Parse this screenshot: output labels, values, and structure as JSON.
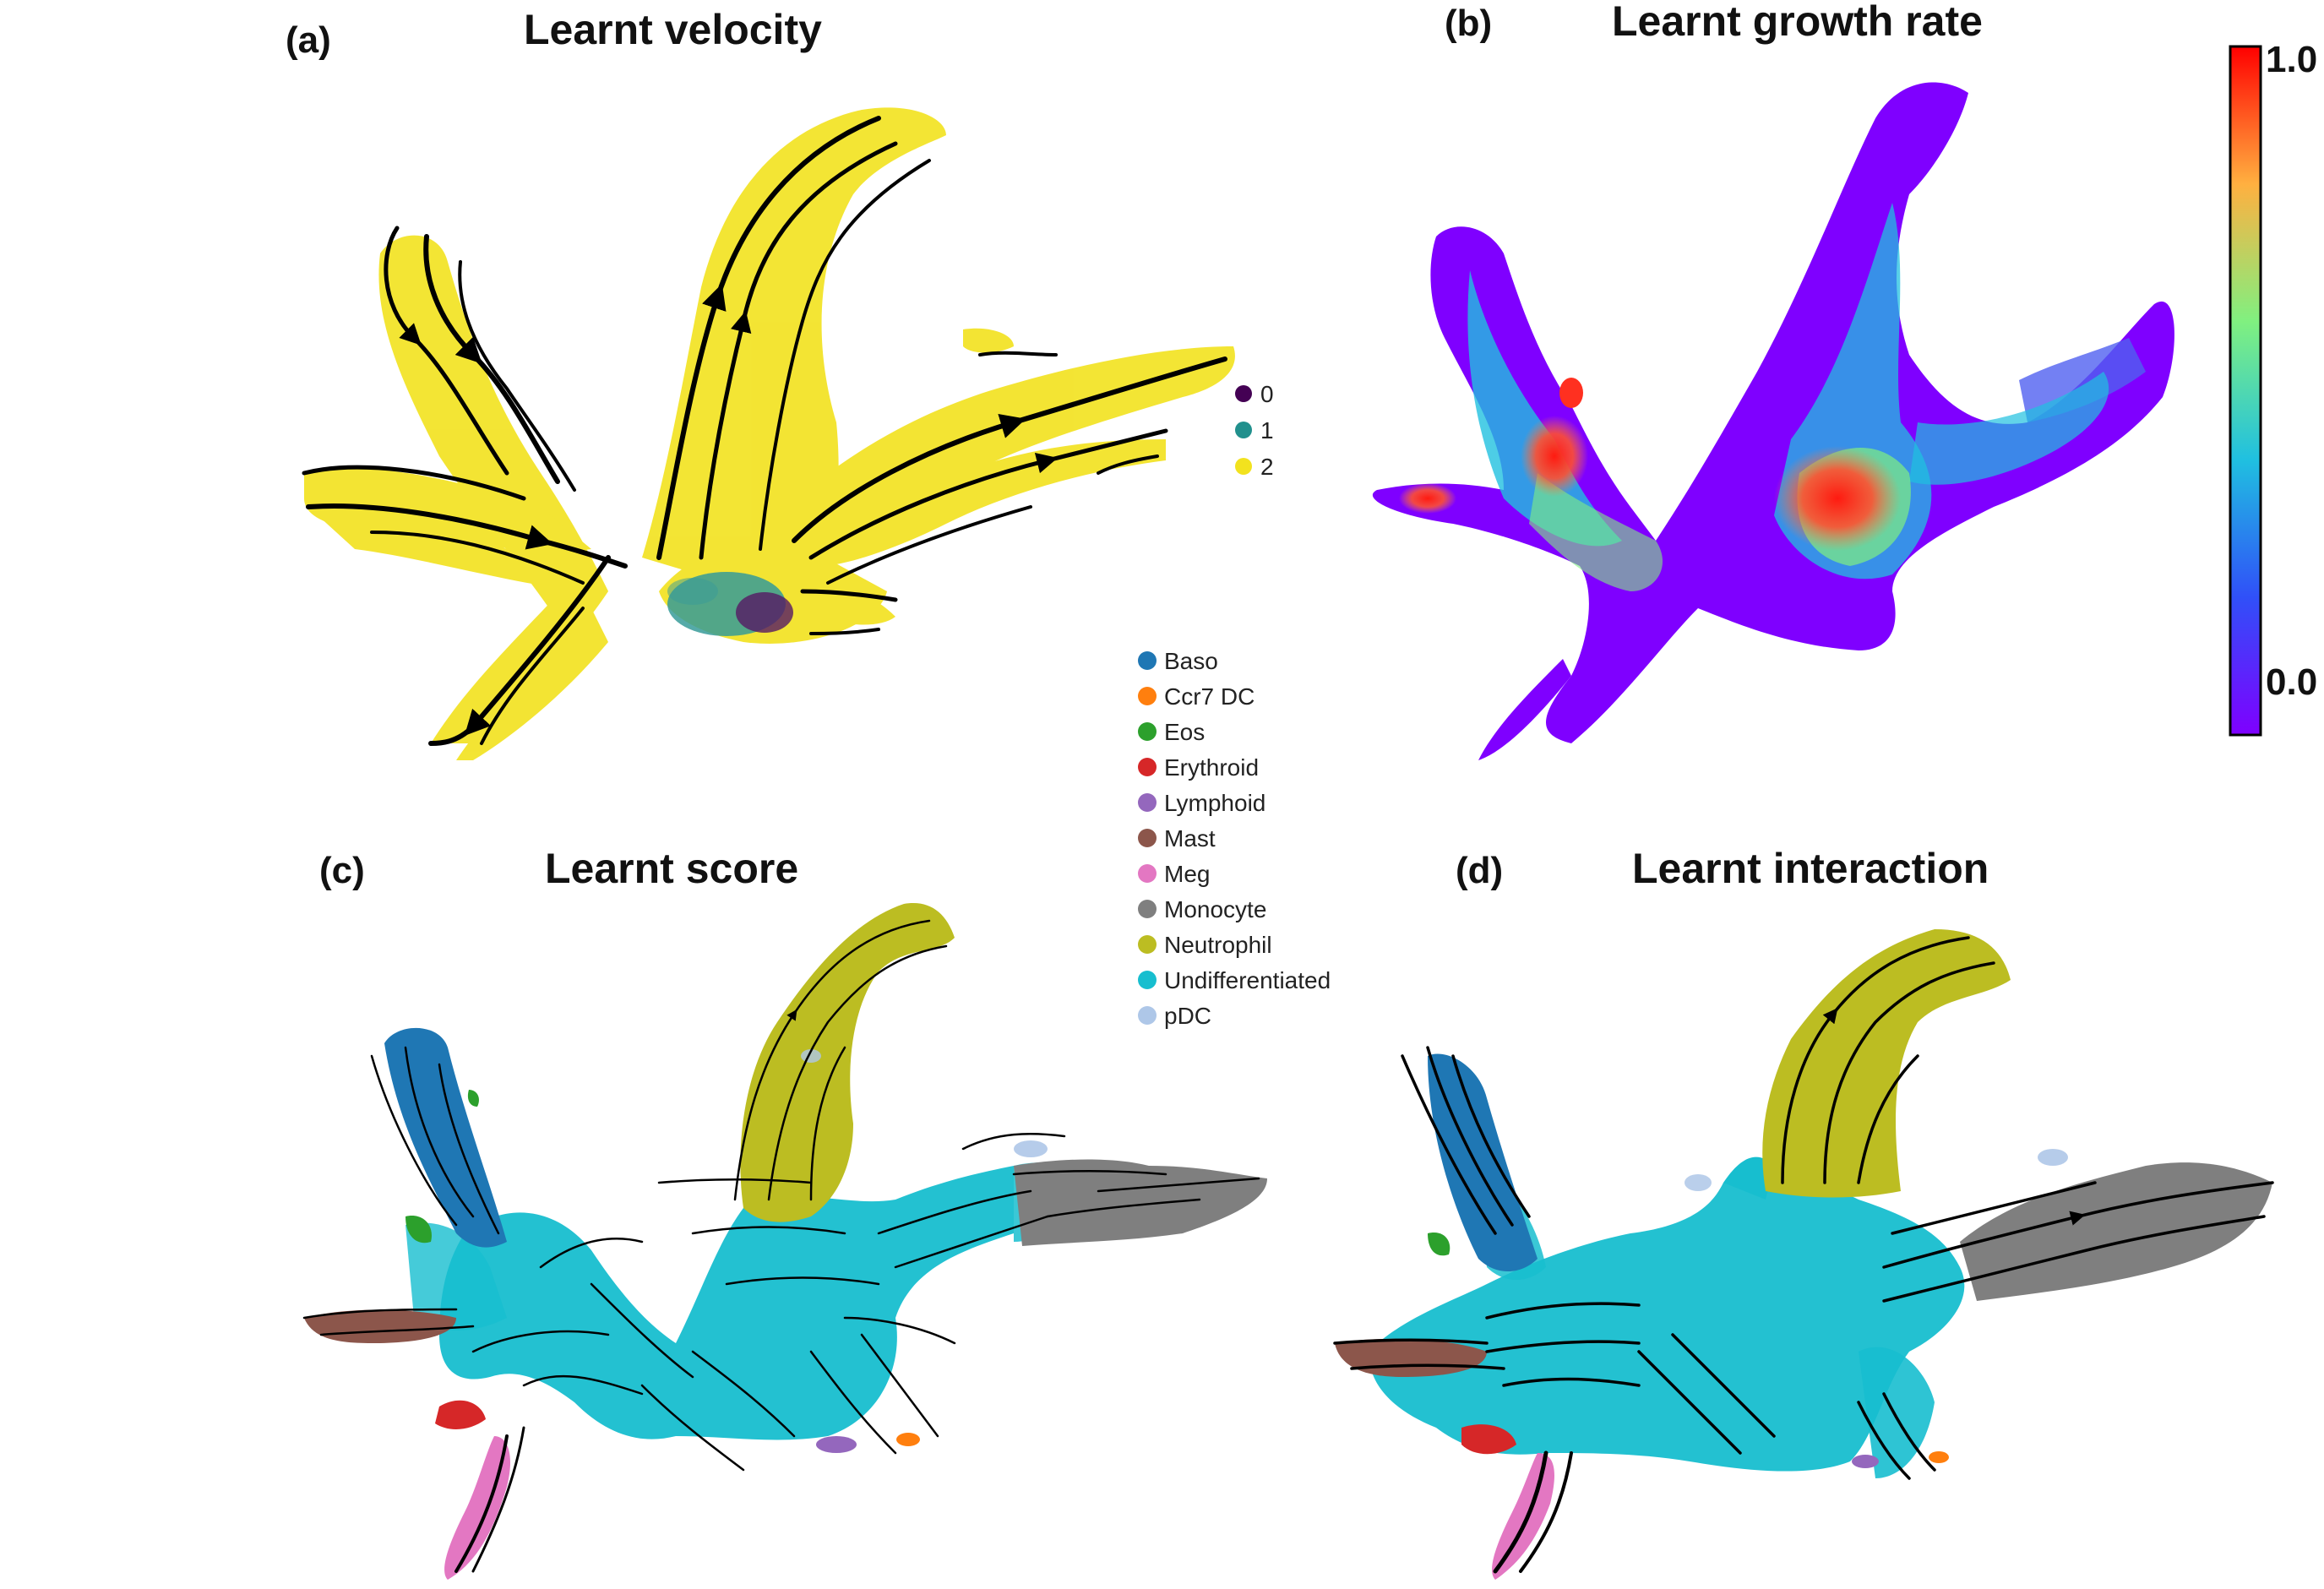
{
  "chart_data": [
    {
      "type": "scatter",
      "panel": "(a)",
      "title": "Learnt velocity",
      "legend": {
        "placement": "right",
        "entries": [
          {
            "label": "0",
            "color": "#440154"
          },
          {
            "label": "1",
            "color": "#21908d"
          },
          {
            "label": "2",
            "color": "#f2e21e"
          }
        ]
      },
      "overlay": "streamlines"
    },
    {
      "type": "scatter",
      "panel": "(b)",
      "title": "Learnt growth rate",
      "colorbar": {
        "min": "0.0",
        "max": "1.0",
        "colormap": "rainbow"
      },
      "overlay": "none"
    },
    {
      "type": "scatter",
      "panel": "(c)",
      "title": "Learnt score",
      "legend": {
        "placement": "top-right",
        "entries": [
          {
            "label": "Baso",
            "color": "#1f77b4"
          },
          {
            "label": "Ccr7 DC",
            "color": "#ff7f0e"
          },
          {
            "label": "Eos",
            "color": "#2ca02c"
          },
          {
            "label": "Erythroid",
            "color": "#d62728"
          },
          {
            "label": "Lymphoid",
            "color": "#9467bd"
          },
          {
            "label": "Mast",
            "color": "#8c564b"
          },
          {
            "label": "Meg",
            "color": "#e377c2"
          },
          {
            "label": "Monocyte",
            "color": "#7f7f7f"
          },
          {
            "label": "Neutrophil",
            "color": "#bcbd22"
          },
          {
            "label": "Undifferentiated",
            "color": "#17becf"
          },
          {
            "label": "pDC",
            "color": "#aec7e8"
          }
        ]
      },
      "overlay": "streamlines"
    },
    {
      "type": "scatter",
      "panel": "(d)",
      "title": "Learnt interaction",
      "overlay": "streamlines"
    }
  ]
}
